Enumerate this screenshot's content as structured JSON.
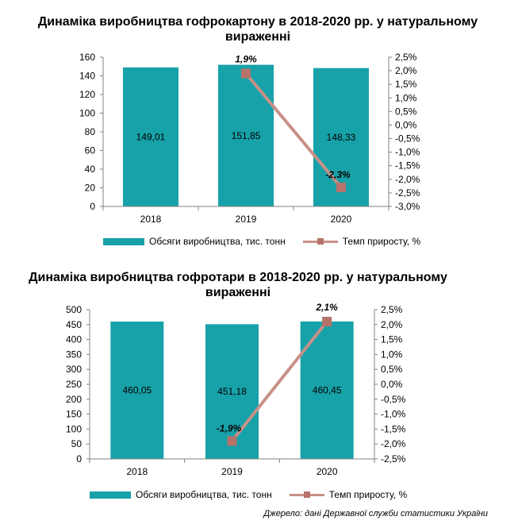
{
  "colors": {
    "bar": "#17a2a9",
    "line": "#c89088",
    "marker": "#b5736a",
    "axis": "#808080"
  },
  "legend": {
    "bar_label": "Обсяги виробництва,  тис. тонн",
    "line_label": "Темп приросту, %"
  },
  "source": "Джерело: дані Державної служби статистики України",
  "chart_data": [
    {
      "type": "bar",
      "title": "Динаміка виробництва гофрокартону в 2018-2020 рр. у натуральному вираженні",
      "categories": [
        "2018",
        "2019",
        "2020"
      ],
      "series": [
        {
          "name": "Обсяги виробництва,  тис. тонн",
          "type": "bar",
          "axis": "left",
          "values": [
            149.01,
            151.85,
            148.33
          ],
          "labels": [
            "149,01",
            "151,85",
            "148,33"
          ]
        },
        {
          "name": "Темп приросту, %",
          "type": "line",
          "axis": "right",
          "points": [
            {
              "category": "2019",
              "value": 1.9,
              "label": "1,9%"
            },
            {
              "category": "2020",
              "value": -2.3,
              "label": "-2,3%"
            }
          ]
        }
      ],
      "ylim": [
        0,
        160
      ],
      "yticks": [
        "0",
        "20",
        "40",
        "60",
        "80",
        "100",
        "120",
        "140",
        "160"
      ],
      "y2lim": [
        -3.0,
        2.5
      ],
      "y2ticks": [
        "-3,0%",
        "-2,5%",
        "-2,0%",
        "-1,5%",
        "-1,0%",
        "-0,5%",
        "0,0%",
        "0,5%",
        "1,0%",
        "1,5%",
        "2,0%",
        "2,5%"
      ],
      "legend": "bottom"
    },
    {
      "type": "bar",
      "title": "Динаміка виробництва гофротари в 2018-2020 рр. у натуральному вираженні",
      "categories": [
        "2018",
        "2019",
        "2020"
      ],
      "series": [
        {
          "name": "Обсяги виробництва,  тис. тонн",
          "type": "bar",
          "axis": "left",
          "values": [
            460.05,
            451.18,
            460.45
          ],
          "labels": [
            "460,05",
            "451,18",
            "460,45"
          ]
        },
        {
          "name": "Темп приросту, %",
          "type": "line",
          "axis": "right",
          "points": [
            {
              "category": "2019",
              "value": -1.9,
              "label": "-1,9%"
            },
            {
              "category": "2020",
              "value": 2.1,
              "label": "2,1%"
            }
          ]
        }
      ],
      "ylim": [
        0,
        500
      ],
      "yticks": [
        "0",
        "50",
        "100",
        "150",
        "200",
        "250",
        "300",
        "350",
        "400",
        "450",
        "500"
      ],
      "y2lim": [
        -2.5,
        2.5
      ],
      "y2ticks": [
        "-2,5%",
        "-2,0%",
        "-1,5%",
        "-1,0%",
        "-0,5%",
        "0,0%",
        "0,5%",
        "1,0%",
        "1,5%",
        "2,0%",
        "2,5%"
      ],
      "legend": "bottom"
    }
  ]
}
